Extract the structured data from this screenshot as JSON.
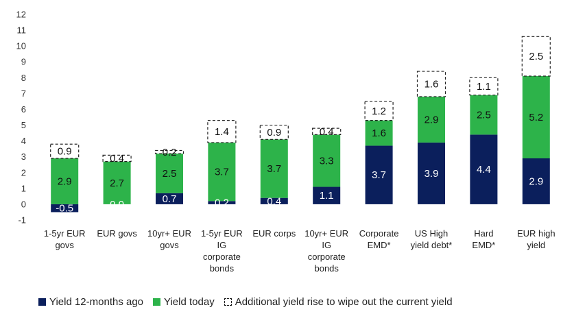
{
  "chart_data": {
    "type": "bar",
    "stacked": true,
    "title": "",
    "xlabel": "",
    "ylabel": "",
    "ylim": [
      -1,
      12
    ],
    "yticks": [
      -1,
      0,
      1,
      2,
      3,
      4,
      5,
      6,
      7,
      8,
      9,
      10,
      11,
      12
    ],
    "grid": false,
    "legend_position": "bottom",
    "categories": [
      [
        "1-5yr EUR",
        "govs"
      ],
      [
        "EUR govs"
      ],
      [
        "10yr+ EUR",
        "govs"
      ],
      [
        "1-5yr EUR",
        "IG",
        "corporate",
        "bonds"
      ],
      [
        "EUR corps"
      ],
      [
        "10yr+ EUR",
        "IG",
        "corporate",
        "bonds"
      ],
      [
        "Corporate",
        "EMD*"
      ],
      [
        "US High",
        "yield debt*"
      ],
      [
        "Hard",
        "EMD*"
      ],
      [
        "EUR high",
        "yield"
      ]
    ],
    "series": [
      {
        "name": "Yield 12-months ago",
        "color": "#0b1f5c",
        "values": [
          -0.5,
          0.0,
          0.7,
          0.2,
          0.4,
          1.1,
          3.7,
          3.9,
          4.4,
          2.9
        ],
        "labels": [
          "-0.5",
          "0.0",
          "0.7",
          "0.2",
          "0.4",
          "1.1",
          "3.7",
          "3.9",
          "4.4",
          "2.9"
        ]
      },
      {
        "name": "Yield today",
        "color": "#2db34a",
        "values": [
          2.9,
          2.7,
          2.5,
          3.7,
          3.7,
          3.3,
          1.6,
          2.9,
          2.5,
          5.2
        ],
        "labels": [
          "2.9",
          "2.7",
          "2.5",
          "3.7",
          "3.7",
          "3.3",
          "1.6",
          "2.9",
          "2.5",
          "5.2"
        ]
      },
      {
        "name": "Additional yield rise to wipe out the current yield",
        "color": "#ffffff",
        "values": [
          0.9,
          0.4,
          0.2,
          1.4,
          0.9,
          0.4,
          1.2,
          1.6,
          1.1,
          2.5
        ],
        "labels": [
          "0.9",
          "0.4",
          "0.2",
          "1.4",
          "0.9",
          "0.4",
          "1.2",
          "1.6",
          "1.1",
          "2.5"
        ]
      }
    ]
  }
}
